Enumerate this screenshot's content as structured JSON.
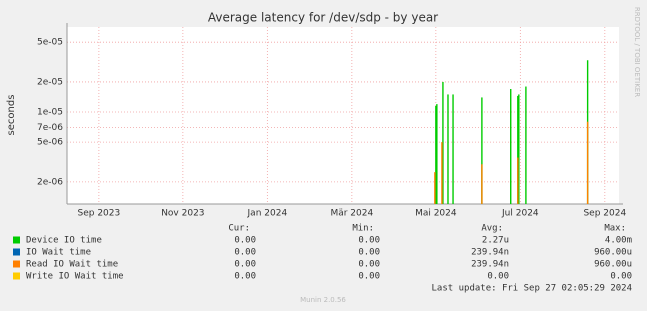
{
  "chart_data": {
    "type": "spike",
    "title": "Average latency for /dev/sdp - by year",
    "y_label": "seconds",
    "side_label": "RRDTOOL / TOBI OETIKER",
    "log_y": true,
    "grid": true,
    "xlim": [
      2023.604,
      2024.695
    ],
    "xticks": [
      {
        "value": 2023.667,
        "label": "Sep 2023"
      },
      {
        "value": 2023.833,
        "label": "Nov 2023"
      },
      {
        "value": 2024.0,
        "label": "Jan 2024"
      },
      {
        "value": 2024.167,
        "label": "Mär 2024"
      },
      {
        "value": 2024.333,
        "label": "Mai 2024"
      },
      {
        "value": 2024.5,
        "label": "Jul 2024"
      },
      {
        "value": 2024.667,
        "label": "Sep 2024"
      }
    ],
    "ylim": [
      1.2e-06,
      7.1e-05
    ],
    "yticks": [
      {
        "value": 5e-05,
        "label": "5e-05"
      },
      {
        "value": 2e-05,
        "label": "2e-05"
      },
      {
        "value": 1e-05,
        "label": "1e-05"
      },
      {
        "value": 7e-06,
        "label": "7e-06"
      },
      {
        "value": 5e-06,
        "label": "5e-06"
      },
      {
        "value": 2e-06,
        "label": "2e-06"
      }
    ],
    "series": [
      {
        "name": "Device IO time",
        "color": "#00cc00",
        "x": [
          2024.333,
          2024.335,
          2024.347,
          2024.357,
          2024.367,
          2024.424,
          2024.481,
          2024.495,
          2024.497,
          2024.511,
          2024.633
        ],
        "values": [
          1.15e-05,
          1.2e-05,
          2e-05,
          1.5e-05,
          1.5e-05,
          1.4e-05,
          1.7e-05,
          1.45e-05,
          1.5e-05,
          1.8e-05,
          3.3e-05
        ],
        "stats": [
          "0.00",
          "0.00",
          "2.27u",
          "4.00m"
        ]
      },
      {
        "name": "IO Wait time",
        "color": "#0066b3",
        "x": [],
        "values": [],
        "stats": [
          "0.00",
          "0.00",
          "239.94n",
          "960.00u"
        ]
      },
      {
        "name": "Read IO Wait time",
        "color": "#ff8000",
        "x": [
          2024.331,
          2024.345,
          2024.424,
          2024.495,
          2024.633
        ],
        "values": [
          2.5e-06,
          5e-06,
          3e-06,
          3.5e-06,
          8e-06
        ],
        "stats": [
          "0.00",
          "0.00",
          "239.94n",
          "960.00u"
        ]
      },
      {
        "name": "Write IO Wait time",
        "color": "#ffcc00",
        "x": [],
        "values": [],
        "stats": [
          "0.00",
          "0.00",
          "0.00",
          "0.00"
        ]
      }
    ],
    "stat_headers": [
      "Cur:",
      "Min:",
      "Avg:",
      "Max:"
    ],
    "last_update": "Last update: Fri Sep 27 02:05:29 2024",
    "footer": "Munin 2.0.56"
  }
}
